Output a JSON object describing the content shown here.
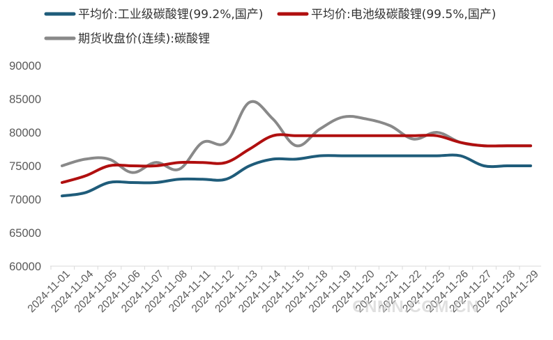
{
  "chart_data": {
    "type": "line",
    "title": "",
    "xlabel": "",
    "ylabel": "",
    "ylim": [
      60000,
      90000
    ],
    "y_ticks": [
      60000,
      65000,
      70000,
      75000,
      80000,
      85000,
      90000
    ],
    "y_tick_labels": [
      "60000",
      "65000",
      "70000",
      "75000",
      "80000",
      "85000",
      "90000"
    ],
    "grid": false,
    "legend_position": "top",
    "categories": [
      "2024-11-01",
      "2024-11-04",
      "2024-11-05",
      "2024-11-06",
      "2024-11-07",
      "2024-11-08",
      "2024-11-11",
      "2024-11-12",
      "2024-11-13",
      "2024-11-14",
      "2024-11-15",
      "2024-11-18",
      "2024-11-19",
      "2024-11-20",
      "2024-11-21",
      "2024-11-22",
      "2024-11-25",
      "2024-11-26",
      "2024-11-27",
      "2024-11-28",
      "2024-11-29"
    ],
    "series": [
      {
        "name": "平均价:工业级碳酸锂(99.2%,国产)",
        "color": "#1f5c7a",
        "values": [
          70500,
          71000,
          72500,
          72500,
          72500,
          73000,
          73000,
          73000,
          75000,
          76000,
          76000,
          76500,
          76500,
          76500,
          76500,
          76500,
          76500,
          76500,
          75000,
          75000,
          75000
        ]
      },
      {
        "name": "平均价:电池级碳酸锂(99.5%,国产)",
        "color": "#b00f0f",
        "values": [
          72500,
          73500,
          75000,
          75000,
          75000,
          75500,
          75500,
          75500,
          77500,
          79500,
          79500,
          79500,
          79500,
          79500,
          79500,
          79500,
          79500,
          78500,
          78000,
          78000,
          78000
        ]
      },
      {
        "name": "期货收盘价(连续):碳酸锂",
        "color": "#898989",
        "values": [
          75000,
          76000,
          76000,
          74000,
          75500,
          74500,
          78500,
          78500,
          84500,
          82000,
          78000,
          80500,
          82300,
          82000,
          81000,
          79000,
          80000,
          78500,
          78000,
          78000,
          78000
        ]
      }
    ]
  },
  "watermark": "CNMN.COM.CN"
}
